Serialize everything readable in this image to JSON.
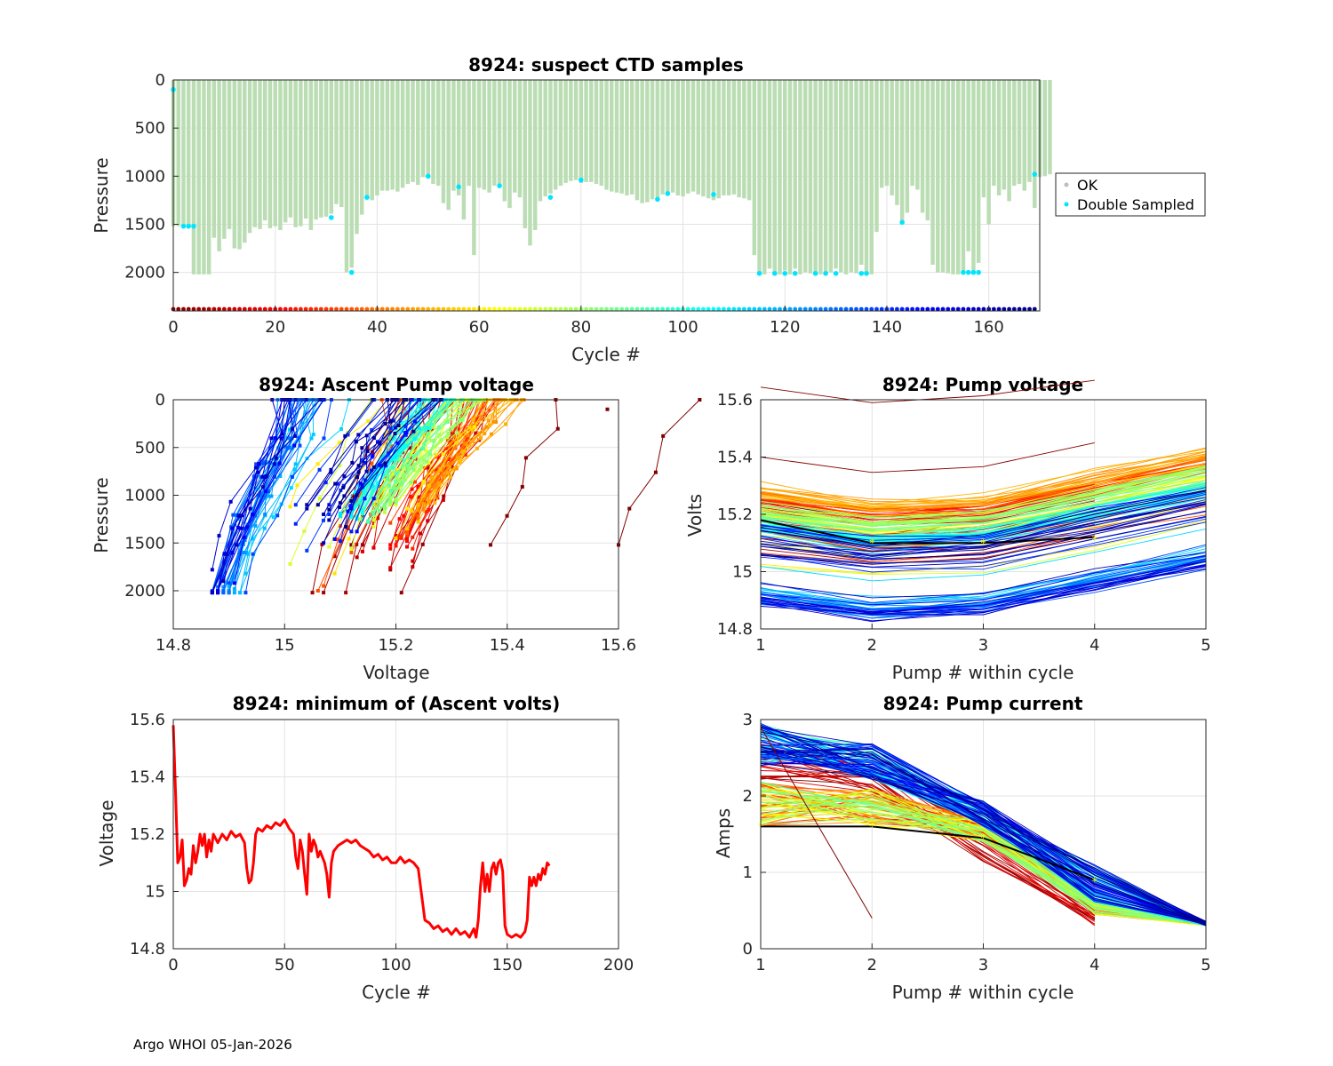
{
  "footer": "Argo WHOI 05-Jan-2026",
  "colors": {
    "ok": "#bbddb4",
    "double": "#00e5ff",
    "voltage_min": "#ff0000",
    "marker": "#ffff00"
  },
  "chart_data": [
    {
      "id": "suspect",
      "type": "bar",
      "title": "8924: suspect CTD samples",
      "xlabel": "Cycle #",
      "ylabel": "Pressure",
      "xlim": [
        0,
        170
      ],
      "ylim": [
        2400,
        0
      ],
      "xticks": [
        "0",
        "20",
        "40",
        "60",
        "80",
        "100",
        "120",
        "140",
        "160"
      ],
      "yticks": [
        "0",
        "500",
        "1000",
        "1500",
        "2000"
      ],
      "legend": [
        "OK",
        "Double Sampled"
      ],
      "legend_position": "outside-right",
      "bar_pressures": [
        1520,
        1520,
        1520,
        1520,
        2020,
        2020,
        2020,
        2020,
        1640,
        1780,
        1650,
        1550,
        1750,
        1760,
        1690,
        1590,
        1530,
        1550,
        1460,
        1540,
        1520,
        1560,
        1480,
        1430,
        1530,
        1520,
        1440,
        1560,
        1450,
        1430,
        1420,
        1390,
        1290,
        1320,
        2000,
        1950,
        1600,
        1400,
        1220,
        1250,
        1200,
        1150,
        1150,
        1140,
        1160,
        1120,
        1080,
        1060,
        1090,
        1010,
        1020,
        1080,
        1100,
        1280,
        1350,
        1150,
        1200,
        1450,
        1100,
        1820,
        1120,
        1140,
        1170,
        1100,
        1110,
        1260,
        1330,
        1170,
        1220,
        1540,
        1720,
        1560,
        1260,
        1210,
        1180,
        1140,
        1100,
        1070,
        1050,
        1040,
        1070,
        1060,
        1060,
        1080,
        1100,
        1140,
        1160,
        1170,
        1180,
        1200,
        1190,
        1250,
        1280,
        1270,
        1240,
        1220,
        1190,
        1180,
        1170,
        1200,
        1210,
        1180,
        1160,
        1190,
        1210,
        1230,
        1250,
        1230,
        1200,
        1200,
        1190,
        1220,
        1230,
        1250,
        1820,
        2020,
        2020,
        1960,
        2000,
        2020,
        1980,
        2020,
        1960,
        2020,
        2000,
        2010,
        2020,
        2020,
        2020,
        2000,
        1960,
        2000,
        2020,
        2000,
        2010,
        1920,
        2020,
        2020,
        1580,
        1120,
        1100,
        1200,
        1300,
        1480,
        1380,
        1100,
        1140,
        1380,
        1460,
        1920,
        2000,
        2000,
        2010,
        2020,
        2020,
        2020,
        1780,
        2020,
        1900,
        1220,
        1500,
        1100,
        1200,
        1140,
        1260,
        1100,
        1080,
        1150,
        1060,
        1330,
        1010,
        1000,
        980
      ],
      "double_sampled": [
        [
          0,
          100
        ],
        [
          2,
          1520
        ],
        [
          3,
          1520
        ],
        [
          4,
          1520
        ],
        [
          31,
          1430
        ],
        [
          35,
          2000
        ],
        [
          38,
          1220
        ],
        [
          50,
          1000
        ],
        [
          56,
          1110
        ],
        [
          64,
          1100
        ],
        [
          74,
          1220
        ],
        [
          80,
          1040
        ],
        [
          95,
          1240
        ],
        [
          97,
          1180
        ],
        [
          106,
          1190
        ],
        [
          115,
          2010
        ],
        [
          118,
          2010
        ],
        [
          120,
          2010
        ],
        [
          122,
          2010
        ],
        [
          126,
          2010
        ],
        [
          128,
          2010
        ],
        [
          130,
          2010
        ],
        [
          135,
          2010
        ],
        [
          136,
          2010
        ],
        [
          143,
          1480
        ],
        [
          155,
          2000
        ],
        [
          156,
          2000
        ],
        [
          157,
          2000
        ],
        [
          158,
          2000
        ],
        [
          169,
          980
        ]
      ]
    },
    {
      "id": "ascent",
      "type": "line",
      "title": "8924: Ascent Pump voltage",
      "xlabel": "Voltage",
      "ylabel": "Pressure",
      "xlim": [
        14.8,
        15.6
      ],
      "ylim": [
        2400,
        0
      ],
      "xticks": [
        "14.8",
        "15",
        "15.2",
        "15.4",
        "15.6"
      ],
      "yticks": [
        "0",
        "500",
        "1000",
        "1500",
        "2000"
      ],
      "series_count": 170
    },
    {
      "id": "pumpvolt",
      "type": "line",
      "title": "8924: Pump voltage",
      "xlabel": "Pump # within cycle",
      "ylabel": "Volts",
      "xlim": [
        1,
        5
      ],
      "ylim": [
        14.8,
        15.6
      ],
      "xticks": [
        "1",
        "2",
        "3",
        "4",
        "5"
      ],
      "yticks": [
        "14.8",
        "15",
        "15.2",
        "15.4",
        "15.6"
      ],
      "series_count": 170
    },
    {
      "id": "minvolt",
      "type": "line",
      "title": "8924: minimum of (Ascent volts)",
      "xlabel": "Cycle #",
      "ylabel": "Voltage",
      "xlim": [
        0,
        200
      ],
      "ylim": [
        14.8,
        15.6
      ],
      "xticks": [
        "0",
        "50",
        "100",
        "150",
        "200"
      ],
      "yticks": [
        "14.8",
        "15",
        "15.2",
        "15.4",
        "15.6"
      ],
      "points": [
        [
          0,
          15.58
        ],
        [
          1,
          15.35
        ],
        [
          2,
          15.1
        ],
        [
          3,
          15.12
        ],
        [
          4,
          15.18
        ],
        [
          5,
          15.02
        ],
        [
          6,
          15.04
        ],
        [
          7,
          15.08
        ],
        [
          8,
          15.06
        ],
        [
          9,
          15.16
        ],
        [
          10,
          15.1
        ],
        [
          11,
          15.14
        ],
        [
          12,
          15.2
        ],
        [
          13,
          15.16
        ],
        [
          14,
          15.2
        ],
        [
          15,
          15.12
        ],
        [
          16,
          15.18
        ],
        [
          17,
          15.14
        ],
        [
          18,
          15.2
        ],
        [
          20,
          15.17
        ],
        [
          22,
          15.2
        ],
        [
          24,
          15.18
        ],
        [
          26,
          15.21
        ],
        [
          28,
          15.19
        ],
        [
          30,
          15.2
        ],
        [
          32,
          15.17
        ],
        [
          33,
          15.08
        ],
        [
          34,
          15.03
        ],
        [
          35,
          15.04
        ],
        [
          36,
          15.1
        ],
        [
          37,
          15.2
        ],
        [
          38,
          15.22
        ],
        [
          40,
          15.21
        ],
        [
          42,
          15.23
        ],
        [
          44,
          15.22
        ],
        [
          46,
          15.24
        ],
        [
          48,
          15.23
        ],
        [
          50,
          15.25
        ],
        [
          52,
          15.22
        ],
        [
          54,
          15.2
        ],
        [
          55,
          15.12
        ],
        [
          56,
          15.08
        ],
        [
          57,
          15.18
        ],
        [
          58,
          15.14
        ],
        [
          59,
          15.06
        ],
        [
          60,
          14.99
        ],
        [
          61,
          15.2
        ],
        [
          62,
          15.14
        ],
        [
          63,
          15.18
        ],
        [
          64,
          15.16
        ],
        [
          65,
          15.12
        ],
        [
          66,
          15.14
        ],
        [
          68,
          15.1
        ],
        [
          69,
          15.06
        ],
        [
          70,
          14.98
        ],
        [
          71,
          15.1
        ],
        [
          72,
          15.14
        ],
        [
          74,
          15.16
        ],
        [
          76,
          15.17
        ],
        [
          78,
          15.18
        ],
        [
          80,
          15.17
        ],
        [
          82,
          15.18
        ],
        [
          84,
          15.16
        ],
        [
          86,
          15.15
        ],
        [
          88,
          15.14
        ],
        [
          90,
          15.12
        ],
        [
          92,
          15.13
        ],
        [
          94,
          15.11
        ],
        [
          96,
          15.12
        ],
        [
          98,
          15.1
        ],
        [
          100,
          15.1
        ],
        [
          102,
          15.12
        ],
        [
          104,
          15.1
        ],
        [
          106,
          15.11
        ],
        [
          108,
          15.1
        ],
        [
          110,
          15.08
        ],
        [
          112,
          14.96
        ],
        [
          113,
          14.9
        ],
        [
          115,
          14.89
        ],
        [
          117,
          14.87
        ],
        [
          119,
          14.88
        ],
        [
          121,
          14.86
        ],
        [
          123,
          14.87
        ],
        [
          125,
          14.85
        ],
        [
          127,
          14.87
        ],
        [
          129,
          14.85
        ],
        [
          131,
          14.86
        ],
        [
          133,
          14.84
        ],
        [
          135,
          14.87
        ],
        [
          136,
          14.84
        ],
        [
          137,
          14.9
        ],
        [
          138,
          15.02
        ],
        [
          139,
          15.1
        ],
        [
          140,
          15.0
        ],
        [
          141,
          15.06
        ],
        [
          142,
          15.0
        ],
        [
          143,
          15.08
        ],
        [
          144,
          15.1
        ],
        [
          145,
          15.06
        ],
        [
          146,
          15.1
        ],
        [
          147,
          15.11
        ],
        [
          148,
          15.07
        ],
        [
          149,
          14.88
        ],
        [
          150,
          14.85
        ],
        [
          152,
          14.84
        ],
        [
          154,
          14.85
        ],
        [
          156,
          14.84
        ],
        [
          158,
          14.86
        ],
        [
          159,
          14.9
        ],
        [
          160,
          15.05
        ],
        [
          161,
          15.02
        ],
        [
          162,
          15.05
        ],
        [
          163,
          15.02
        ],
        [
          164,
          15.06
        ],
        [
          165,
          15.04
        ],
        [
          166,
          15.08
        ],
        [
          167,
          15.06
        ],
        [
          168,
          15.1
        ],
        [
          169,
          15.09
        ]
      ]
    },
    {
      "id": "pumpcurr",
      "type": "line",
      "title": "8924: Pump current",
      "xlabel": "Pump # within cycle",
      "ylabel": "Amps",
      "xlim": [
        1,
        5
      ],
      "ylim": [
        0,
        3
      ],
      "xticks": [
        "1",
        "2",
        "3",
        "4",
        "5"
      ],
      "yticks": [
        "0",
        "1",
        "2",
        "3"
      ],
      "series_count": 170
    }
  ]
}
